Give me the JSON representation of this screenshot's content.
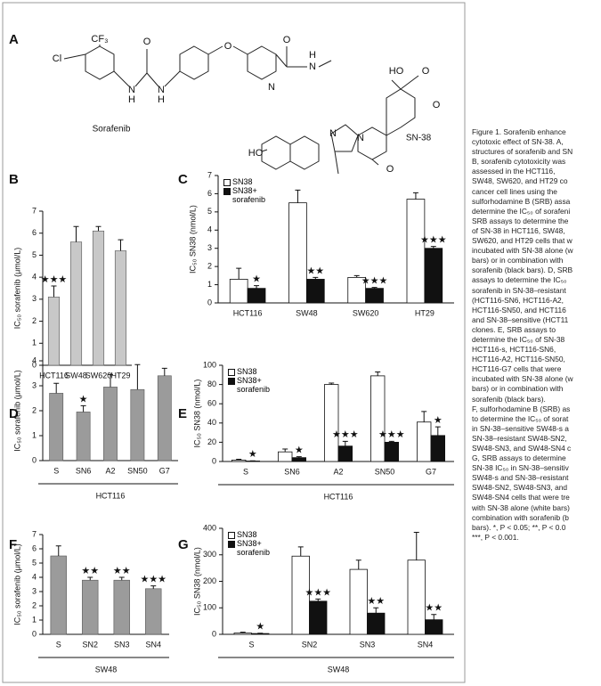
{
  "figure": {
    "panels": [
      "A",
      "B",
      "C",
      "D",
      "E",
      "F",
      "G"
    ],
    "structures": {
      "names": [
        "Sorafenib",
        "SN-38"
      ],
      "atoms": [
        "Cl",
        "CF₃",
        "N",
        "H",
        "O",
        "N",
        "H",
        "O",
        "O",
        "N",
        "N",
        "H",
        "HO",
        "O",
        "O",
        "N",
        "N",
        "O",
        "HO"
      ]
    },
    "caption": [
      "Figure 1.  Sorafenib enhance",
      "cytotoxic effect of SN-38. A,",
      "structures of sorafenib and SN",
      "B, sorafenib cytotoxicity was",
      "assessed in the HCT116,",
      "SW48, SW620, and HT29 co",
      "cancer cell lines using the",
      "sulforhodamine B (SRB) assa",
      "determine the IC₅₀ of sorafeni",
      "SRB assays to determine the",
      "of SN-38 in HCT116, SW48,",
      "SW620, and HT29 cells that w",
      "incubated with SN-38 alone (w",
      "bars) or in combination with",
      "sorafenib (black bars). D, SRB",
      "assays to determine the IC₅₀",
      "sorafenib in SN-38–resistant",
      "(HCT116-SN6, HCT116-A2,",
      "HCT116-SN50, and HCT116",
      "and SN-38–sensitive (HCT11",
      "clones. E, SRB assays to",
      "determine the IC₅₀ of SN-38",
      "HCT116-s, HCT116-SN6,",
      "HCT116-A2, HCT116-SN50,",
      "HCT116-G7 cells that were",
      "incubated with SN-38 alone (w",
      "bars) or in combination with",
      "sorafenib (black bars).",
      "F, sulforhodamine B (SRB) as",
      "to determine the IC₅₀ of sorat",
      "in SN-38–sensitive SW48-s a",
      "SN-38–resistant SW48-SN2,",
      "SW48-SN3, and SW48-SN4 c",
      "G, SRB assays to determine",
      "SN-38 IC₅₀ in SN-38–sensitiv",
      "SW48-s and SN-38–resistant",
      "SW48-SN2, SW48-SN3, and",
      "SW48-SN4 cells that were tre",
      "with SN-38 alone (white bars)",
      "combination with sorafenib (b",
      "bars). *, P < 0.05; **, P < 0.0",
      "***, P < 0.001."
    ]
  },
  "chart_data": [
    {
      "type": "bar",
      "ylabel": "IC₅₀ sorafenib (μmol/L)",
      "categories": [
        "HCT116",
        "SW48",
        "SW620",
        "HT29"
      ],
      "values": [
        3.1,
        5.6,
        6.1,
        5.2
      ],
      "errors": [
        0.5,
        0.7,
        0.2,
        0.5
      ],
      "color": "#c8c8c8",
      "annotations": [
        "★★★",
        null,
        null,
        null
      ],
      "ylim": [
        0,
        7
      ],
      "yticks": [
        0,
        1,
        2,
        3,
        4,
        5,
        6,
        7
      ]
    },
    {
      "type": "bar",
      "ylabel": "IC₅₀ SN38 (nmol/L)",
      "categories": [
        "HCT116",
        "SW48",
        "SW620",
        "HT29"
      ],
      "legend": "upper left",
      "series": [
        {
          "name": "SN38",
          "color": "#ffffff",
          "values": [
            1.3,
            5.5,
            1.4,
            5.7
          ],
          "errors": [
            0.6,
            0.7,
            0.1,
            0.35
          ]
        },
        {
          "name": "SN38+ sorafenib",
          "color": "#111111",
          "values": [
            0.8,
            1.3,
            0.8,
            3.0
          ],
          "errors": [
            0.15,
            0.1,
            0.05,
            0.1
          ]
        }
      ],
      "annotations": [
        "★",
        "★★",
        "★★★",
        "★★★"
      ],
      "ylim": [
        0,
        7
      ],
      "yticks": [
        0,
        1,
        2,
        3,
        4,
        5,
        6,
        7
      ]
    },
    {
      "type": "bar",
      "ylabel": "IC₅₀ sorafenib (μmol/L)",
      "xlabel": "HCT116",
      "categories": [
        "S",
        "SN6",
        "A2",
        "SN50",
        "G7"
      ],
      "values": [
        2.7,
        1.95,
        2.95,
        2.85,
        3.4
      ],
      "errors": [
        0.4,
        0.25,
        0.5,
        1.0,
        0.3
      ],
      "color": "#9b9b9b",
      "annotations": [
        null,
        "★",
        null,
        null,
        null
      ],
      "ylim": [
        0,
        4
      ],
      "yticks": [
        0,
        1,
        2,
        3,
        4
      ]
    },
    {
      "type": "bar",
      "ylabel": "IC₅₀ SN38 (nmol/L)",
      "xlabel": "HCT116",
      "categories": [
        "S",
        "SN6",
        "A2",
        "SN50",
        "G7"
      ],
      "legend": "upper left",
      "series": [
        {
          "name": "SN38",
          "color": "#ffffff",
          "values": [
            1.5,
            10,
            80,
            89,
            41
          ],
          "errors": [
            0.8,
            3,
            1.5,
            4,
            11
          ]
        },
        {
          "name": "SN38+ sorafenib",
          "color": "#111111",
          "values": [
            0.5,
            4,
            16,
            20,
            27
          ],
          "errors": [
            0.2,
            1,
            5,
            1,
            9
          ]
        }
      ],
      "annotations": [
        "★",
        "★",
        "★★★",
        "★★★",
        "★"
      ],
      "ylim": [
        0,
        100
      ],
      "yticks": [
        0,
        20,
        40,
        60,
        80,
        100
      ]
    },
    {
      "type": "bar",
      "ylabel": "IC₅₀ sorafenib (μmol/L)",
      "xlabel": "SW48",
      "categories": [
        "S",
        "SN2",
        "SN3",
        "SN4"
      ],
      "values": [
        5.5,
        3.8,
        3.8,
        3.2
      ],
      "errors": [
        0.7,
        0.2,
        0.2,
        0.2
      ],
      "color": "#9b9b9b",
      "annotations": [
        null,
        "★★",
        "★★",
        "★★★"
      ],
      "ylim": [
        0,
        7
      ],
      "yticks": [
        0,
        1,
        2,
        3,
        4,
        5,
        6,
        7
      ]
    },
    {
      "type": "bar",
      "ylabel": "IC₅₀ SN38 (nmol/L)",
      "xlabel": "SW48",
      "categories": [
        "S",
        "SN2",
        "SN3",
        "SN4"
      ],
      "legend": "upper left",
      "series": [
        {
          "name": "SN38",
          "color": "#ffffff",
          "values": [
            5,
            295,
            245,
            280
          ],
          "errors": [
            3,
            35,
            35,
            105
          ]
        },
        {
          "name": "SN38+ sorafenib",
          "color": "#111111",
          "values": [
            3,
            125,
            80,
            55
          ],
          "errors": [
            1,
            8,
            20,
            20
          ]
        }
      ],
      "annotations": [
        "★",
        "★★★",
        "★★",
        "★★"
      ],
      "ylim": [
        0,
        400
      ],
      "yticks": [
        0,
        100,
        200,
        300,
        400
      ]
    }
  ]
}
